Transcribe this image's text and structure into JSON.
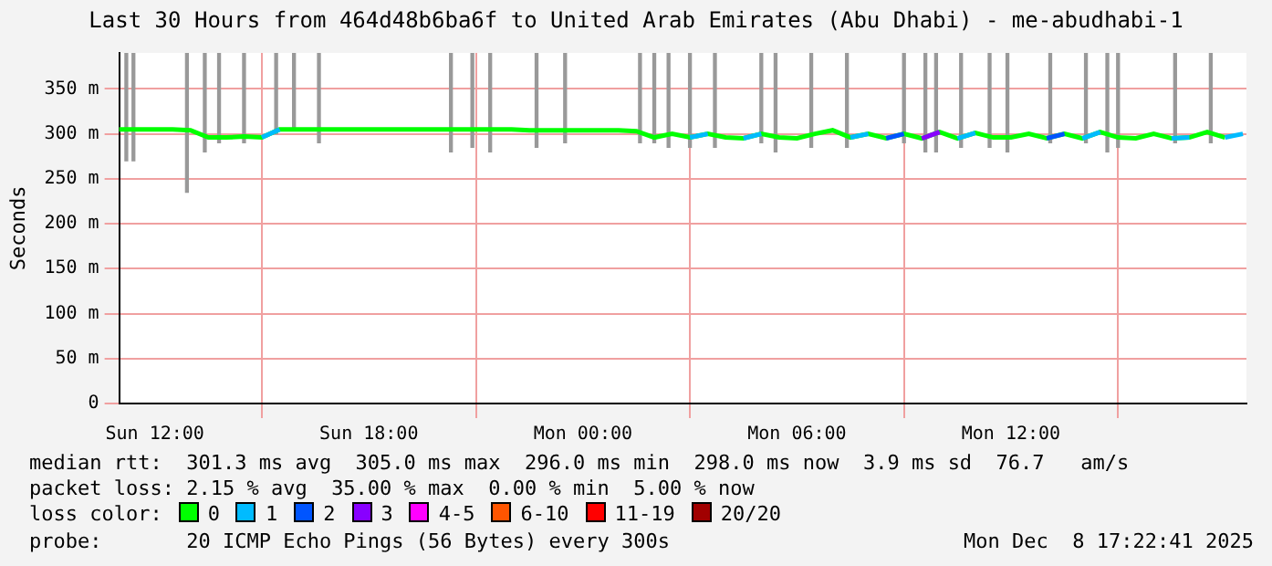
{
  "chart_data": {
    "type": "line",
    "title": "Last 30 Hours from 464d48b6ba6f to United Arab Emirates (Abu Dhabi) - me-abudhabi-1",
    "ylabel": "Seconds",
    "legend_title": "loss color:",
    "x": [
      "2025-12-07T11:00",
      "2025-12-07T11:30",
      "2025-12-07T12:00",
      "2025-12-07T12:30",
      "2025-12-07T13:00",
      "2025-12-07T13:30",
      "2025-12-07T14:00",
      "2025-12-07T14:30",
      "2025-12-07T15:00",
      "2025-12-07T15:30",
      "2025-12-07T16:00",
      "2025-12-07T16:30",
      "2025-12-07T17:00",
      "2025-12-07T17:30",
      "2025-12-07T18:00",
      "2025-12-07T18:30",
      "2025-12-07T19:00",
      "2025-12-07T19:30",
      "2025-12-07T20:00",
      "2025-12-07T20:30",
      "2025-12-07T21:00",
      "2025-12-07T21:30",
      "2025-12-07T22:00",
      "2025-12-07T22:30",
      "2025-12-07T23:00",
      "2025-12-07T23:30",
      "2025-12-08T00:00",
      "2025-12-08T00:30",
      "2025-12-08T01:00",
      "2025-12-08T01:30",
      "2025-12-08T02:00",
      "2025-12-08T02:30",
      "2025-12-08T03:00",
      "2025-12-08T03:30",
      "2025-12-08T04:00",
      "2025-12-08T04:30",
      "2025-12-08T05:00",
      "2025-12-08T05:30",
      "2025-12-08T06:00",
      "2025-12-08T06:30",
      "2025-12-08T07:00",
      "2025-12-08T07:30",
      "2025-12-08T08:00",
      "2025-12-08T08:30",
      "2025-12-08T09:00",
      "2025-12-08T09:30",
      "2025-12-08T10:00",
      "2025-12-08T10:30",
      "2025-12-08T11:00",
      "2025-12-08T11:30",
      "2025-12-08T12:00",
      "2025-12-08T12:30",
      "2025-12-08T13:00",
      "2025-12-08T13:30",
      "2025-12-08T14:00",
      "2025-12-08T14:30",
      "2025-12-08T15:00",
      "2025-12-08T15:30",
      "2025-12-08T16:00",
      "2025-12-08T16:30",
      "2025-12-08T17:00",
      "2025-12-08T17:30",
      "2025-12-08T18:00",
      "2025-12-08T18:30"
    ],
    "xlim": [
      "2025-12-07T11:00",
      "2025-12-08T18:36"
    ],
    "ylim": [
      0,
      390
    ],
    "xticks": [
      {
        "value": "2025-12-07T12:00",
        "label": "Sun 12:00"
      },
      {
        "value": "2025-12-07T18:00",
        "label": "Sun 18:00"
      },
      {
        "value": "2025-12-08T00:00",
        "label": "Mon 00:00"
      },
      {
        "value": "2025-12-08T06:00",
        "label": "Mon 06:00"
      },
      {
        "value": "2025-12-08T12:00",
        "label": "Mon 12:00"
      }
    ],
    "yticks": [
      {
        "value": 0,
        "label": "0"
      },
      {
        "value": 50,
        "label": "50 m"
      },
      {
        "value": 100,
        "label": "100 m"
      },
      {
        "value": 150,
        "label": "150 m"
      },
      {
        "value": 200,
        "label": "200 m"
      },
      {
        "value": 250,
        "label": "250 m"
      },
      {
        "value": 300,
        "label": "300 m"
      },
      {
        "value": 350,
        "label": "350 m"
      }
    ],
    "grid": true,
    "legend": "bottom",
    "series": [
      {
        "name": "0",
        "color": "#00ff00",
        "values": [
          305,
          305,
          305,
          305,
          304,
          296,
          296,
          297,
          296,
          305,
          305,
          305,
          305,
          305,
          305,
          305,
          305,
          305,
          305,
          305,
          305,
          305,
          305,
          304,
          304,
          304,
          304,
          304,
          304,
          303,
          296,
          300,
          296,
          300,
          296,
          295,
          300,
          296,
          295,
          300,
          304,
          296,
          300,
          295,
          300,
          295,
          302,
          295,
          301,
          296,
          296,
          300,
          295,
          300,
          295,
          302,
          296,
          295,
          300,
          295,
          296,
          302,
          296,
          null
        ]
      },
      {
        "name": "1",
        "color": "#00bbff",
        "values": [
          null,
          null,
          null,
          null,
          null,
          null,
          null,
          null,
          296,
          305,
          null,
          null,
          null,
          null,
          null,
          null,
          null,
          null,
          null,
          null,
          null,
          null,
          null,
          null,
          null,
          null,
          null,
          null,
          null,
          null,
          null,
          null,
          296,
          300,
          null,
          295,
          300,
          null,
          null,
          null,
          null,
          296,
          300,
          null,
          null,
          null,
          null,
          295,
          301,
          null,
          null,
          null,
          null,
          null,
          295,
          302,
          null,
          null,
          null,
          295,
          296,
          null,
          296,
          300
        ]
      },
      {
        "name": "2",
        "color": "#0055ff",
        "values": [
          null,
          null,
          null,
          null,
          null,
          null,
          null,
          null,
          null,
          null,
          null,
          null,
          null,
          null,
          null,
          null,
          null,
          null,
          null,
          null,
          null,
          null,
          null,
          null,
          null,
          null,
          null,
          null,
          null,
          null,
          null,
          null,
          null,
          null,
          null,
          null,
          null,
          null,
          null,
          null,
          null,
          null,
          null,
          295,
          300,
          null,
          null,
          null,
          null,
          null,
          null,
          null,
          295,
          300,
          null,
          null,
          null,
          null,
          null,
          null,
          null,
          null,
          null,
          null
        ]
      },
      {
        "name": "3",
        "color": "#8800ff",
        "values": [
          null,
          null,
          null,
          null,
          null,
          null,
          null,
          null,
          null,
          null,
          null,
          null,
          null,
          null,
          null,
          null,
          null,
          null,
          null,
          null,
          null,
          null,
          null,
          null,
          null,
          null,
          null,
          null,
          null,
          null,
          null,
          null,
          null,
          null,
          null,
          null,
          null,
          null,
          null,
          null,
          null,
          null,
          null,
          null,
          null,
          295,
          302,
          null,
          null,
          null,
          null,
          null,
          null,
          null,
          null,
          null,
          null,
          null,
          null,
          null,
          null,
          null,
          null,
          null
        ]
      },
      {
        "name": "4-5",
        "color": "#ff00ff",
        "values": [
          null,
          null,
          null,
          null,
          null,
          null,
          null,
          null,
          null,
          null,
          null,
          null,
          null,
          null,
          null,
          null,
          null,
          null,
          null,
          null,
          null,
          null,
          null,
          null,
          null,
          null,
          null,
          null,
          null,
          null,
          null,
          null,
          null,
          null,
          null,
          null,
          null,
          null,
          null,
          null,
          null,
          null,
          null,
          null,
          null,
          null,
          null,
          null,
          null,
          null,
          null,
          null,
          null,
          null,
          null,
          null,
          null,
          null,
          null,
          null,
          null,
          null,
          null,
          null
        ]
      },
      {
        "name": "6-10",
        "color": "#ff5500",
        "values": [
          null,
          null,
          null,
          null,
          null,
          null,
          null,
          null,
          null,
          null,
          null,
          null,
          null,
          null,
          null,
          null,
          null,
          null,
          null,
          null,
          null,
          null,
          null,
          null,
          null,
          null,
          null,
          null,
          null,
          null,
          null,
          null,
          null,
          null,
          null,
          null,
          null,
          null,
          null,
          null,
          null,
          null,
          null,
          null,
          null,
          null,
          null,
          null,
          null,
          null,
          null,
          null,
          null,
          null,
          null,
          null,
          null,
          null,
          null,
          null,
          null,
          null,
          null,
          null
        ]
      },
      {
        "name": "11-19",
        "color": "#ff0000",
        "values": [
          null,
          null,
          null,
          null,
          null,
          null,
          null,
          null,
          null,
          null,
          null,
          null,
          null,
          null,
          null,
          null,
          null,
          null,
          null,
          null,
          null,
          null,
          null,
          null,
          null,
          null,
          null,
          null,
          null,
          null,
          null,
          null,
          null,
          null,
          null,
          null,
          null,
          null,
          null,
          null,
          null,
          null,
          null,
          null,
          null,
          null,
          null,
          null,
          null,
          null,
          null,
          null,
          null,
          null,
          null,
          null,
          null,
          null,
          null,
          null,
          null,
          null,
          null,
          null
        ]
      },
      {
        "name": "20/20",
        "color": "#a10000",
        "values": [
          null,
          null,
          null,
          null,
          null,
          null,
          null,
          null,
          null,
          null,
          null,
          null,
          null,
          null,
          null,
          null,
          null,
          null,
          null,
          null,
          null,
          null,
          null,
          null,
          null,
          null,
          null,
          null,
          null,
          null,
          null,
          null,
          null,
          null,
          null,
          null,
          null,
          null,
          null,
          null,
          null,
          null,
          null,
          null,
          null,
          null,
          null,
          null,
          null,
          null,
          null,
          null,
          null,
          null,
          null,
          null,
          null,
          null,
          null,
          null,
          null,
          null,
          null,
          null
        ]
      },
      {
        "type": "bar",
        "color": "#999999",
        "x": [
          "2025-12-07T11:12",
          "2025-12-07T11:24",
          "2025-12-07T12:54",
          "2025-12-07T13:24",
          "2025-12-07T13:48",
          "2025-12-07T14:30",
          "2025-12-07T15:24",
          "2025-12-07T15:54",
          "2025-12-07T16:36",
          "2025-12-07T20:18",
          "2025-12-07T20:54",
          "2025-12-07T21:24",
          "2025-12-07T22:42",
          "2025-12-07T23:30",
          "2025-12-08T01:36",
          "2025-12-08T02:00",
          "2025-12-08T02:24",
          "2025-12-08T03:00",
          "2025-12-08T03:42",
          "2025-12-08T05:00",
          "2025-12-08T05:24",
          "2025-12-08T06:24",
          "2025-12-08T07:24",
          "2025-12-08T09:00",
          "2025-12-08T09:36",
          "2025-12-08T09:54",
          "2025-12-08T10:36",
          "2025-12-08T11:24",
          "2025-12-08T11:54",
          "2025-12-08T13:06",
          "2025-12-08T14:06",
          "2025-12-08T14:42",
          "2025-12-08T15:00",
          "2025-12-08T16:36",
          "2025-12-08T17:36"
        ],
        "base": [
          270,
          270,
          235,
          280,
          290,
          290,
          300,
          305,
          290,
          280,
          285,
          280,
          285,
          290,
          290,
          290,
          285,
          285,
          285,
          290,
          280,
          285,
          285,
          290,
          280,
          280,
          285,
          285,
          280,
          290,
          290,
          280,
          285,
          290,
          290
        ],
        "values": [
          120,
          120,
          155,
          110,
          100,
          100,
          90,
          85,
          100,
          110,
          105,
          110,
          105,
          100,
          100,
          100,
          105,
          105,
          105,
          100,
          110,
          105,
          105,
          100,
          110,
          110,
          105,
          105,
          110,
          100,
          100,
          110,
          105,
          100,
          100
        ]
      }
    ],
    "annotations": [
      "median rtt:  301.3 ms avg  305.0 ms max  296.0 ms min  298.0 ms now  3.9 ms sd  76.7   am/s",
      "packet loss: 2.15 % avg  35.00 % max  0.00 % min  5.00 % now",
      "probe:       20 ICMP Echo Pings (56 Bytes) every 300s",
      "Mon Dec  8 17:22:41 2025"
    ]
  }
}
